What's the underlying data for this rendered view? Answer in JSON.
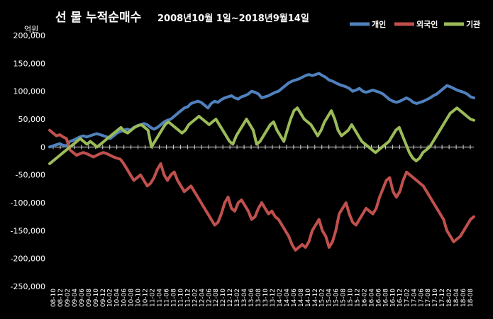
{
  "chart_data": {
    "type": "line",
    "title": "선 물  누적순매수",
    "subtitle": "2008년10월 1일~2018년9월14일",
    "ylabel": "억원",
    "ylim": [
      -250000,
      200000
    ],
    "yticks": [
      200000,
      150000,
      100000,
      50000,
      0,
      -50000,
      -100000,
      -150000,
      -200000,
      -250000
    ],
    "ytick_labels": [
      "200,000",
      "150,000",
      "100,000",
      "50,000",
      "0",
      "-50,000",
      "-100,000",
      "-150,000",
      "-200,000",
      "-250,000"
    ],
    "xticks": [
      "08-10",
      "08-12",
      "09-02",
      "09-04",
      "09-06",
      "09-08",
      "09-10",
      "09-12",
      "10-02",
      "10-04",
      "10-06",
      "10-08",
      "10-10",
      "10-12",
      "11-02",
      "11-04",
      "11-06",
      "11-08",
      "11-10",
      "11-12",
      "12-02",
      "12-04",
      "12-06",
      "12-08",
      "12-10",
      "12-12",
      "13-02",
      "13-04",
      "13-06",
      "13-08",
      "13-10",
      "13-12",
      "14-02",
      "14-04",
      "14-06",
      "14-08",
      "14-10",
      "14-12",
      "15-02",
      "15-04",
      "15-06",
      "15-08",
      "15-10",
      "15-12",
      "16-02",
      "16-04",
      "16-06",
      "16-08",
      "16-10",
      "16-12",
      "17-02",
      "17-04",
      "17-06",
      "17-08",
      "17-10",
      "17-12",
      "18-02",
      "18-04",
      "18-06",
      "18-08"
    ],
    "legend_position": "top-right",
    "grid": false,
    "colors": {
      "background": "#000000",
      "individual": "#4f81bd",
      "foreign": "#c0504d",
      "institution": "#9bbb59",
      "axis": "#d9d9d9"
    },
    "series": [
      {
        "name": "개인",
        "values": [
          0,
          2000,
          4000,
          6000,
          3000,
          2000,
          10000,
          12000,
          15000,
          18000,
          20000,
          18000,
          20000,
          22000,
          24000,
          22000,
          20000,
          18000,
          15000,
          20000,
          25000,
          28000,
          30000,
          32000,
          30000,
          35000,
          38000,
          40000,
          42000,
          40000,
          35000,
          32000,
          35000,
          40000,
          45000,
          48000,
          50000,
          55000,
          60000,
          65000,
          70000,
          72000,
          78000,
          80000,
          82000,
          80000,
          75000,
          70000,
          78000,
          82000,
          80000,
          85000,
          88000,
          90000,
          92000,
          88000,
          86000,
          90000,
          92000,
          95000,
          100000,
          98000,
          95000,
          88000,
          90000,
          92000,
          95000,
          98000,
          100000,
          105000,
          110000,
          115000,
          118000,
          120000,
          122000,
          125000,
          128000,
          130000,
          128000,
          130000,
          132000,
          128000,
          125000,
          120000,
          118000,
          115000,
          112000,
          110000,
          108000,
          105000,
          100000,
          102000,
          105000,
          100000,
          98000,
          100000,
          102000,
          100000,
          98000,
          95000,
          90000,
          85000,
          82000,
          80000,
          82000,
          85000,
          88000,
          85000,
          80000,
          78000,
          80000,
          82000,
          85000,
          88000,
          92000,
          95000,
          100000,
          105000,
          110000,
          108000,
          105000,
          102000,
          100000,
          98000,
          95000,
          90000,
          88000
        ]
      },
      {
        "name": "외국인",
        "values": [
          30000,
          25000,
          20000,
          22000,
          18000,
          15000,
          -5000,
          -10000,
          -15000,
          -12000,
          -10000,
          -12000,
          -15000,
          -18000,
          -15000,
          -12000,
          -10000,
          -12000,
          -15000,
          -18000,
          -20000,
          -22000,
          -30000,
          -40000,
          -50000,
          -60000,
          -55000,
          -50000,
          -60000,
          -70000,
          -65000,
          -55000,
          -40000,
          -30000,
          -50000,
          -60000,
          -50000,
          -45000,
          -60000,
          -70000,
          -80000,
          -75000,
          -70000,
          -80000,
          -90000,
          -100000,
          -110000,
          -120000,
          -130000,
          -140000,
          -135000,
          -120000,
          -100000,
          -90000,
          -110000,
          -115000,
          -100000,
          -95000,
          -105000,
          -115000,
          -130000,
          -125000,
          -110000,
          -100000,
          -110000,
          -120000,
          -115000,
          -125000,
          -130000,
          -140000,
          -150000,
          -160000,
          -175000,
          -185000,
          -180000,
          -175000,
          -180000,
          -170000,
          -150000,
          -140000,
          -130000,
          -150000,
          -160000,
          -180000,
          -170000,
          -150000,
          -120000,
          -110000,
          -100000,
          -120000,
          -135000,
          -140000,
          -130000,
          -120000,
          -110000,
          -115000,
          -120000,
          -110000,
          -90000,
          -75000,
          -60000,
          -55000,
          -80000,
          -90000,
          -80000,
          -60000,
          -45000,
          -50000,
          -55000,
          -60000,
          -65000,
          -70000,
          -80000,
          -90000,
          -100000,
          -110000,
          -120000,
          -130000,
          -150000,
          -160000,
          -170000,
          -165000,
          -160000,
          -150000,
          -140000,
          -130000,
          -125000
        ]
      },
      {
        "name": "기관",
        "values": [
          -30000,
          -25000,
          -20000,
          -15000,
          -10000,
          -5000,
          0,
          5000,
          10000,
          15000,
          10000,
          5000,
          10000,
          5000,
          0,
          5000,
          10000,
          15000,
          20000,
          25000,
          30000,
          35000,
          28000,
          25000,
          30000,
          35000,
          38000,
          40000,
          35000,
          30000,
          0,
          10000,
          20000,
          30000,
          40000,
          45000,
          40000,
          35000,
          30000,
          25000,
          30000,
          40000,
          45000,
          50000,
          55000,
          50000,
          45000,
          40000,
          45000,
          50000,
          40000,
          30000,
          20000,
          10000,
          5000,
          20000,
          30000,
          40000,
          50000,
          40000,
          30000,
          5000,
          10000,
          20000,
          30000,
          40000,
          45000,
          30000,
          20000,
          10000,
          30000,
          50000,
          65000,
          70000,
          60000,
          50000,
          45000,
          40000,
          30000,
          20000,
          30000,
          45000,
          55000,
          65000,
          50000,
          30000,
          20000,
          25000,
          30000,
          40000,
          30000,
          20000,
          10000,
          5000,
          0,
          -5000,
          -10000,
          -5000,
          0,
          5000,
          10000,
          20000,
          30000,
          35000,
          20000,
          5000,
          -10000,
          -20000,
          -25000,
          -20000,
          -10000,
          -5000,
          0,
          10000,
          20000,
          30000,
          40000,
          50000,
          60000,
          65000,
          70000,
          65000,
          60000,
          55000,
          50000,
          48000
        ]
      }
    ]
  }
}
